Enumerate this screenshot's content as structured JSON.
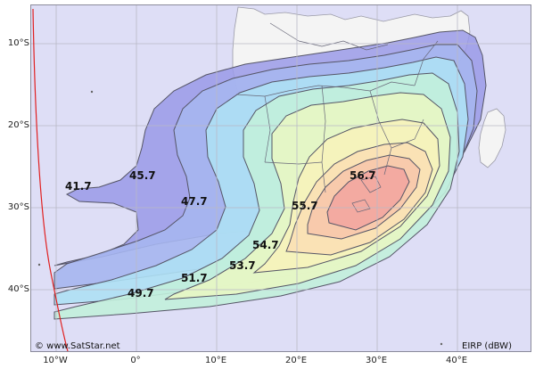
{
  "map": {
    "lat_labels": [
      "10°S",
      "20°S",
      "30°S",
      "40°S"
    ],
    "lon_labels": [
      "10°W",
      "0°",
      "10°E",
      "20°E",
      "30°E",
      "40°E"
    ],
    "contour_labels": [
      "41.7",
      "45.7",
      "47.7",
      "49.7",
      "51.7",
      "53.7",
      "54.7",
      "55.7",
      "56.7"
    ],
    "credit": "© www.SatStar.net",
    "legend_unit": "EIRP (dBW)",
    "colors": {
      "ocean": "#dedef6",
      "land": "#f4f4f4",
      "gridline": "#b9b9c6",
      "contour_line": "#555566",
      "horizon_line": "#e02020",
      "beam_outer": "#8f8fe8",
      "beam_peak": "#f2a8a0"
    }
  }
}
